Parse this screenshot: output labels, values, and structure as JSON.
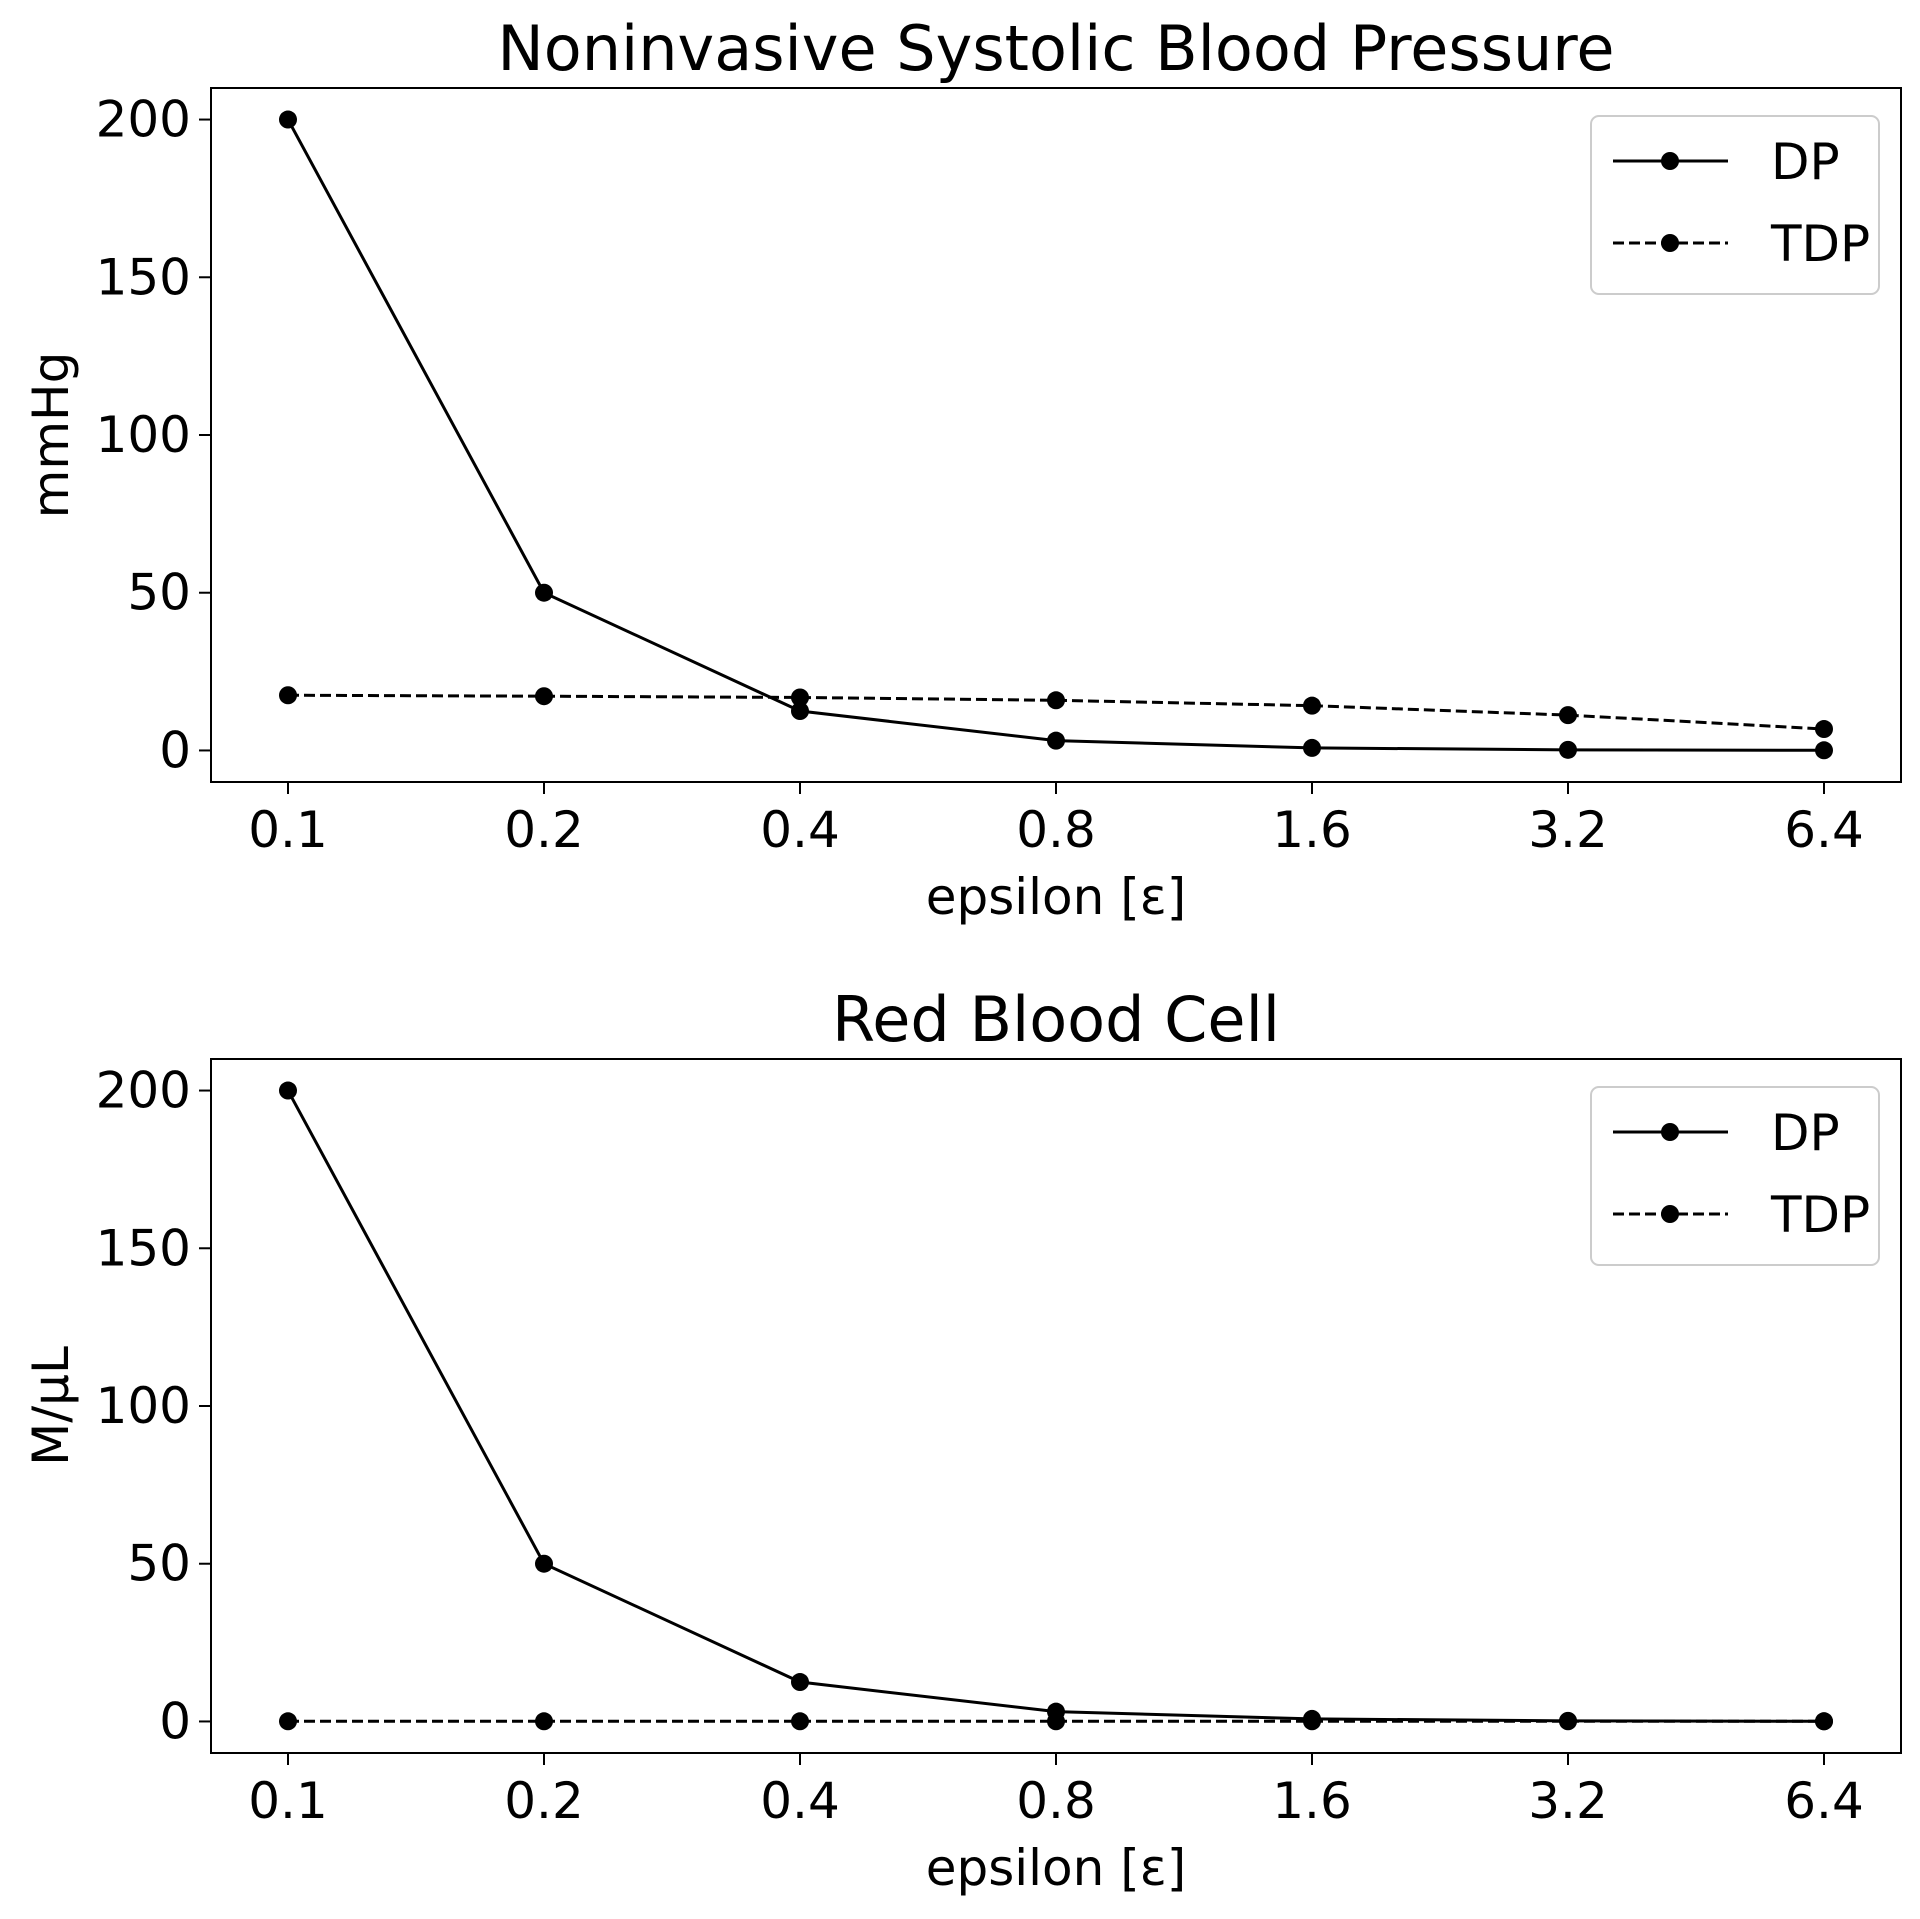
{
  "chart_data": [
    {
      "type": "line",
      "title": "Noninvasive Systolic Blood Pressure",
      "xlabel": "epsilon [ε]",
      "ylabel": "mmHg",
      "categories": [
        "0.1",
        "0.2",
        "0.4",
        "0.8",
        "1.6",
        "3.2",
        "6.4"
      ],
      "ylim": [
        -10,
        210
      ],
      "yticks": [
        0,
        50,
        100,
        150,
        200
      ],
      "grid": false,
      "legend": "top-right",
      "series": [
        {
          "name": "DP",
          "style": "solid",
          "color": "#000000",
          "values": [
            200,
            50,
            12.5,
            3.1,
            0.8,
            0.2,
            0.05
          ]
        },
        {
          "name": "TDP",
          "style": "dashed",
          "color": "#000000",
          "values": [
            17.5,
            17.2,
            16.8,
            15.9,
            14.2,
            11.2,
            6.8
          ]
        }
      ]
    },
    {
      "type": "line",
      "title": "Red Blood Cell",
      "xlabel": "epsilon [ε]",
      "ylabel": "M/μL",
      "categories": [
        "0.1",
        "0.2",
        "0.4",
        "0.8",
        "1.6",
        "3.2",
        "6.4"
      ],
      "ylim": [
        -10,
        210
      ],
      "yticks": [
        0,
        50,
        100,
        150,
        200
      ],
      "grid": false,
      "legend": "top-right",
      "series": [
        {
          "name": "DP",
          "style": "solid",
          "color": "#000000",
          "values": [
            200,
            50,
            12.5,
            3.1,
            0.8,
            0.2,
            0.05
          ]
        },
        {
          "name": "TDP",
          "style": "dashed",
          "color": "#000000",
          "values": [
            0.05,
            0.05,
            0.05,
            0.05,
            0.05,
            0.05,
            0.05
          ]
        }
      ]
    }
  ]
}
